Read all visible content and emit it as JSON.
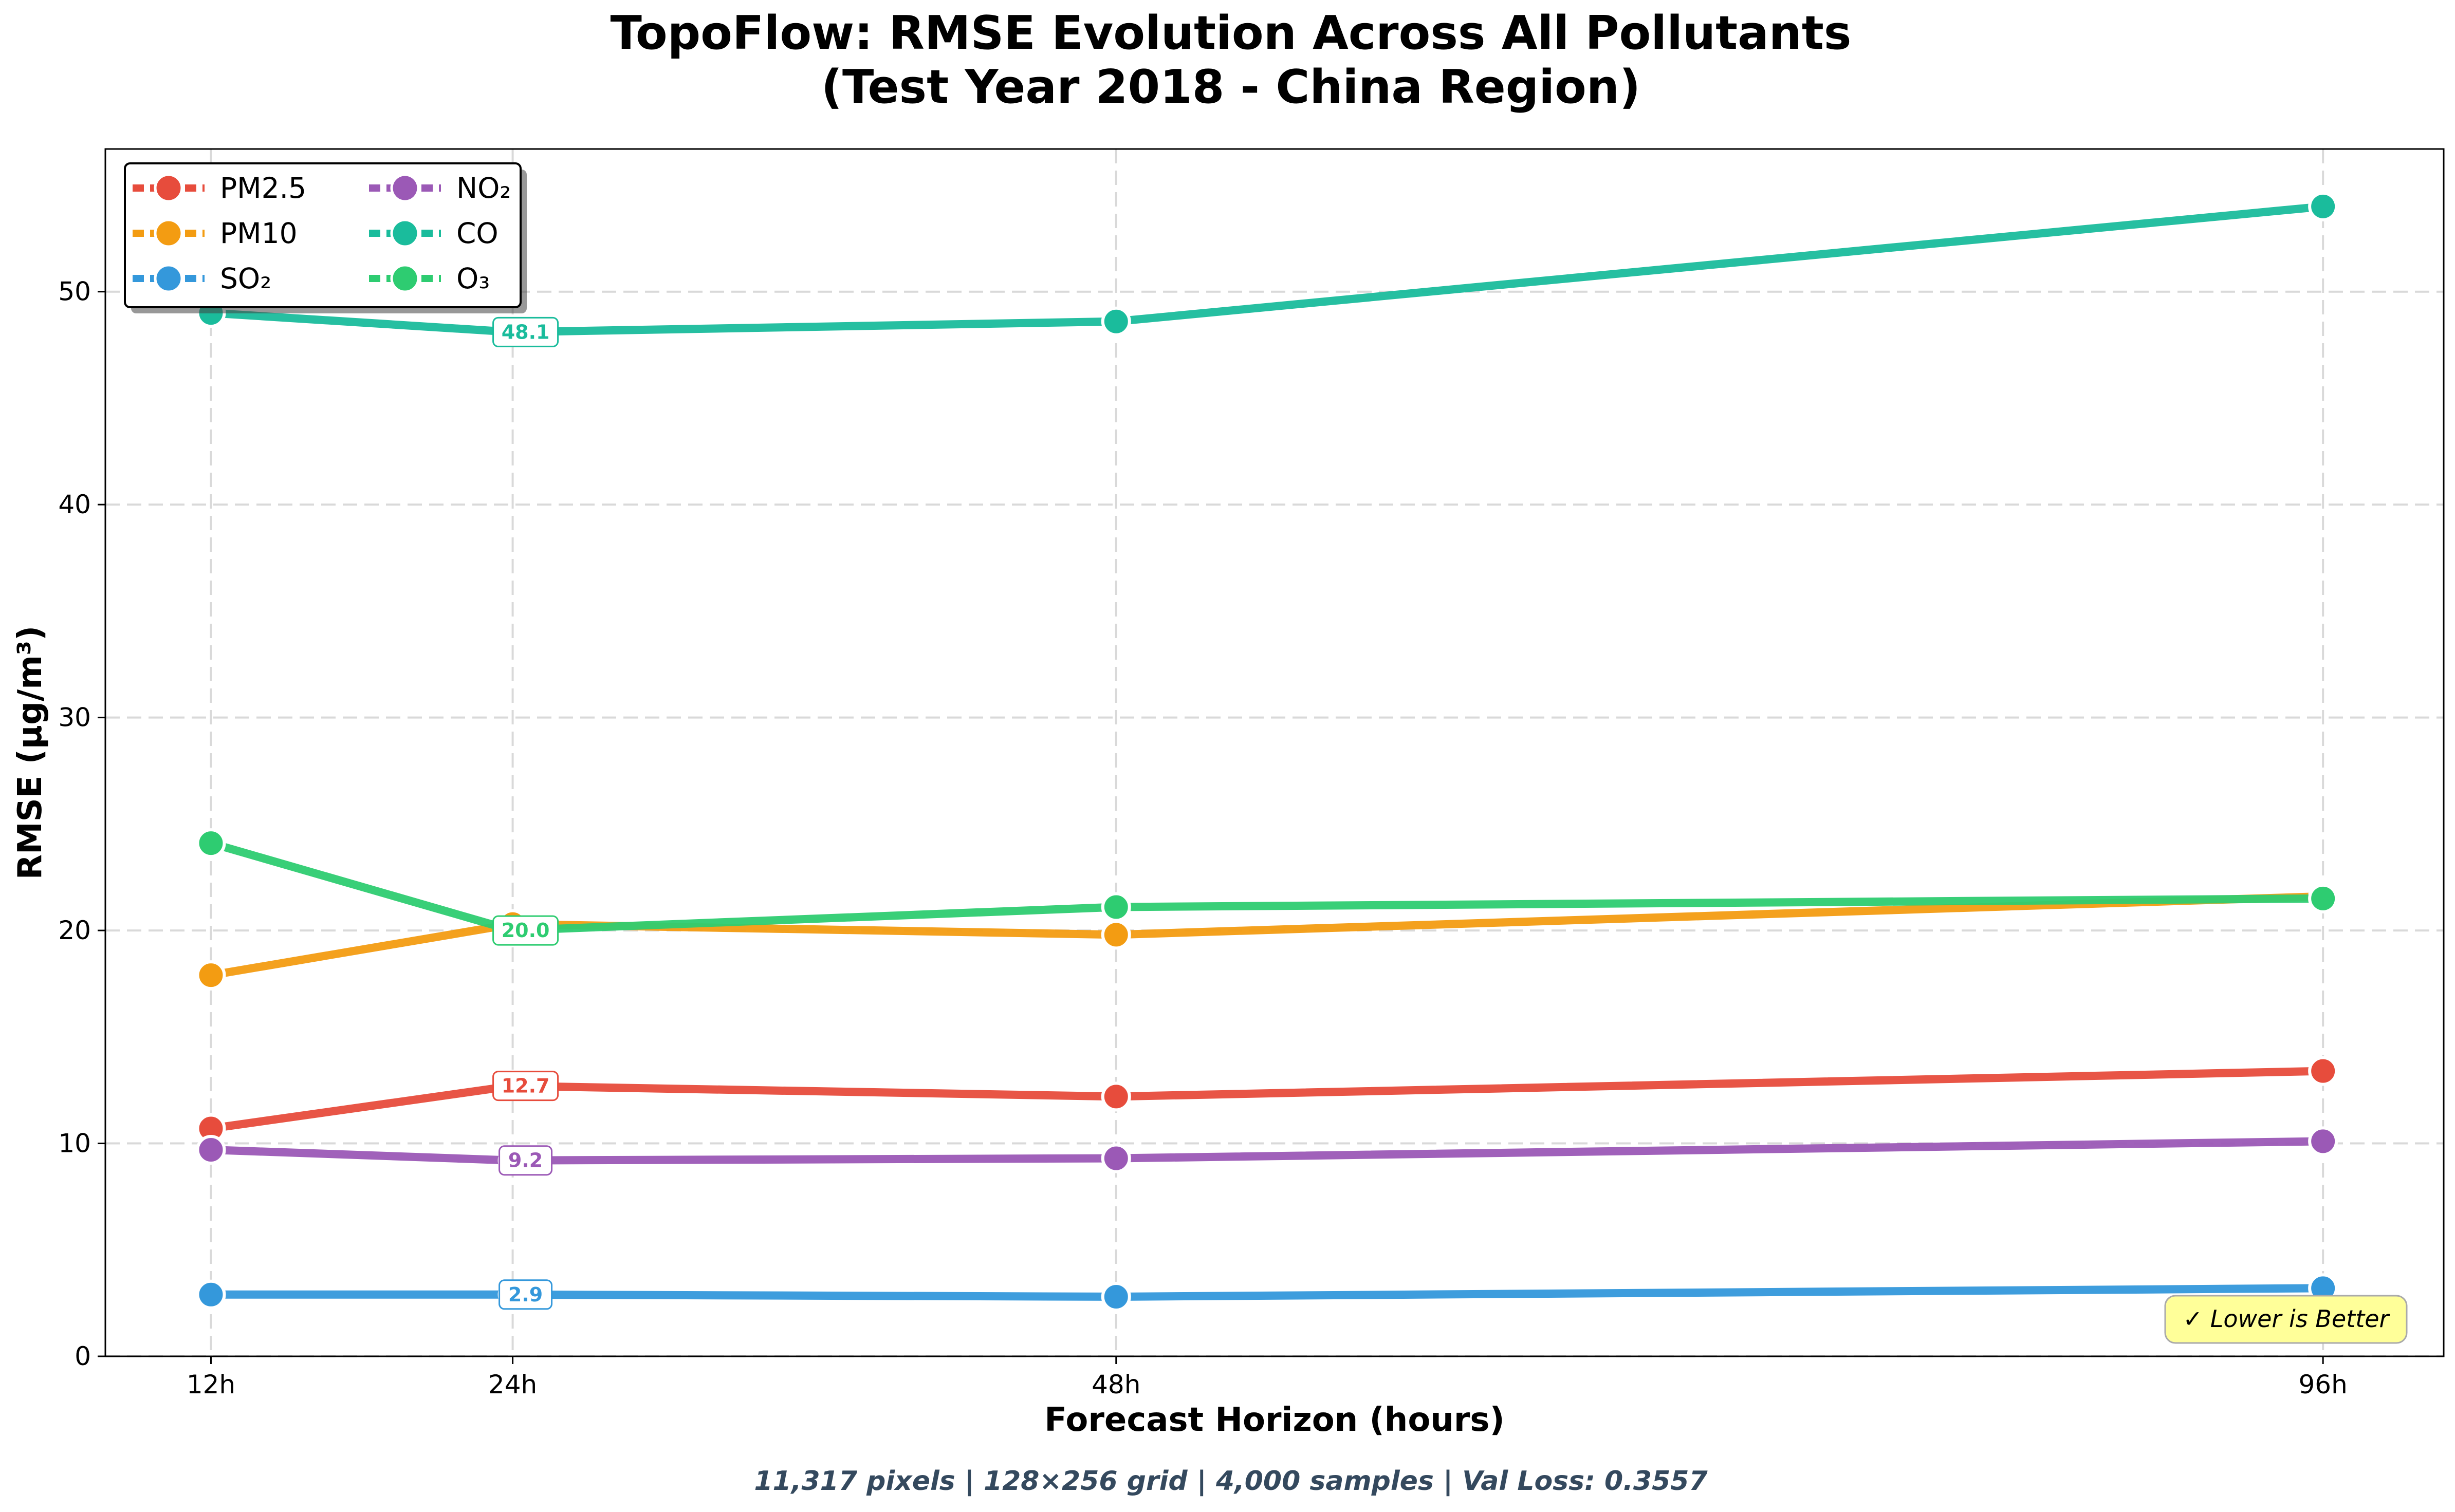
{
  "chart_data": {
    "type": "line",
    "title": [
      "TopoFlow: RMSE Evolution Across All Pollutants",
      "(Test Year 2018 - China Region)"
    ],
    "xlabel": "Forecast Horizon (hours)",
    "ylabel": "RMSE (µg/m³)",
    "x": [
      12,
      24,
      48,
      96
    ],
    "x_tick_labels": [
      "12h",
      "24h",
      "48h",
      "96h"
    ],
    "xlim": [
      7.8,
      100.8
    ],
    "ylim": [
      0,
      56.7
    ],
    "y_ticks": [
      0,
      10,
      20,
      30,
      40,
      50
    ],
    "y_tick_labels": [
      "0",
      "10",
      "20",
      "30",
      "40",
      "50"
    ],
    "grid": true,
    "legend": {
      "position": "top-left",
      "columns": 2
    },
    "series": [
      {
        "name": "PM2.5",
        "color": "#e74c3c",
        "values": [
          10.7,
          12.7,
          12.2,
          13.4
        ]
      },
      {
        "name": "PM10",
        "color": "#f39c12",
        "values": [
          17.9,
          20.3,
          19.8,
          21.6
        ]
      },
      {
        "name": "SO₂",
        "color": "#3498db",
        "values": [
          2.9,
          2.9,
          2.8,
          3.2
        ]
      },
      {
        "name": "NO₂",
        "color": "#9b59b6",
        "values": [
          9.7,
          9.2,
          9.3,
          10.1
        ]
      },
      {
        "name": "CO",
        "color": "#1abc9c",
        "values": [
          49.0,
          48.1,
          48.6,
          54.0
        ]
      },
      {
        "name": "O₃",
        "color": "#2ecc71",
        "values": [
          24.1,
          20.0,
          21.1,
          21.5
        ]
      }
    ],
    "data_labels": [
      {
        "series": "CO",
        "x": 24,
        "text": "48.1"
      },
      {
        "series": "O₃",
        "x": 24,
        "text": "20.0"
      },
      {
        "series": "PM2.5",
        "x": 24,
        "text": "12.7"
      },
      {
        "series": "NO₂",
        "x": 24,
        "text": "9.2"
      },
      {
        "series": "SO₂",
        "x": 24,
        "text": "2.9"
      }
    ],
    "annotation": {
      "text": "✓ Lower is Better",
      "position": "bottom-right",
      "background": "#ffff99"
    }
  },
  "footer": "11,317 pixels | 128×256 grid | 4,000 samples | Val Loss: 0.3557"
}
